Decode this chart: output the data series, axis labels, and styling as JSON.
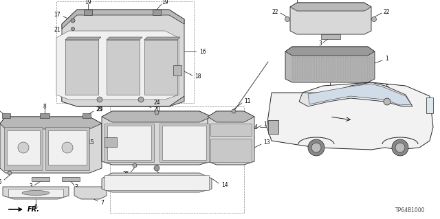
{
  "bg_color": "#ffffff",
  "fig_width": 6.4,
  "fig_height": 3.19,
  "dpi": 100,
  "part_code": "TP64B1000",
  "line_color": "#222222",
  "fill_light": "#d8d8d8",
  "fill_mid": "#b8b8b8",
  "fill_dark": "#999999",
  "fill_white": "#f0f0f0",
  "label_fs": 5.5,
  "leader_lw": 0.55
}
